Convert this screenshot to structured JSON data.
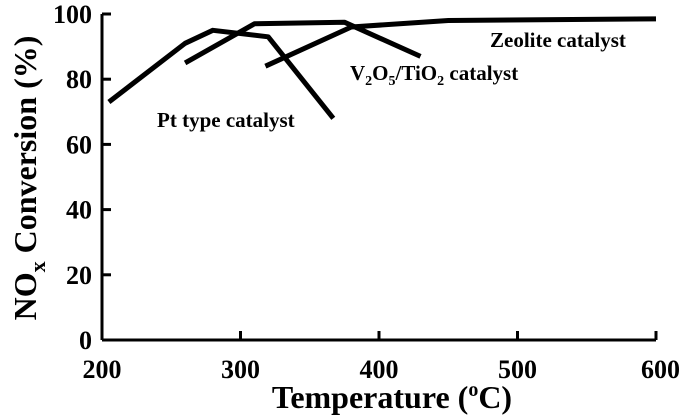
{
  "chart_data": {
    "type": "line",
    "xlabel": "Temperature",
    "xlabel_unit_sup": "o",
    "xlabel_unit": "C",
    "xlabel_open": "(",
    "xlabel_close": ")",
    "ylabel_main": "NO",
    "ylabel_sub": "x",
    "ylabel_rest": " Conversion (%)",
    "xlim": [
      200,
      600
    ],
    "ylim": [
      0,
      100
    ],
    "xticks": [
      200,
      300,
      400,
      500,
      600
    ],
    "yticks": [
      0,
      20,
      40,
      60,
      80,
      100
    ],
    "grid": false,
    "series": [
      {
        "name": "Pt type catalyst",
        "x": [
          205,
          260,
          280,
          320,
          367
        ],
        "y": [
          73,
          91,
          95,
          93,
          68
        ]
      },
      {
        "name": "Zeolite catalyst",
        "x": [
          318,
          380,
          450,
          600
        ],
        "y": [
          84,
          96,
          98,
          98.5
        ]
      }
    ],
    "v2o5_series": {
      "name_parts": [
        "V",
        "2",
        "O",
        "5",
        "/TiO",
        "2",
        " catalyst"
      ],
      "x": [
        260,
        310,
        375,
        430
      ],
      "y": [
        85,
        97,
        97.5,
        87
      ]
    }
  }
}
